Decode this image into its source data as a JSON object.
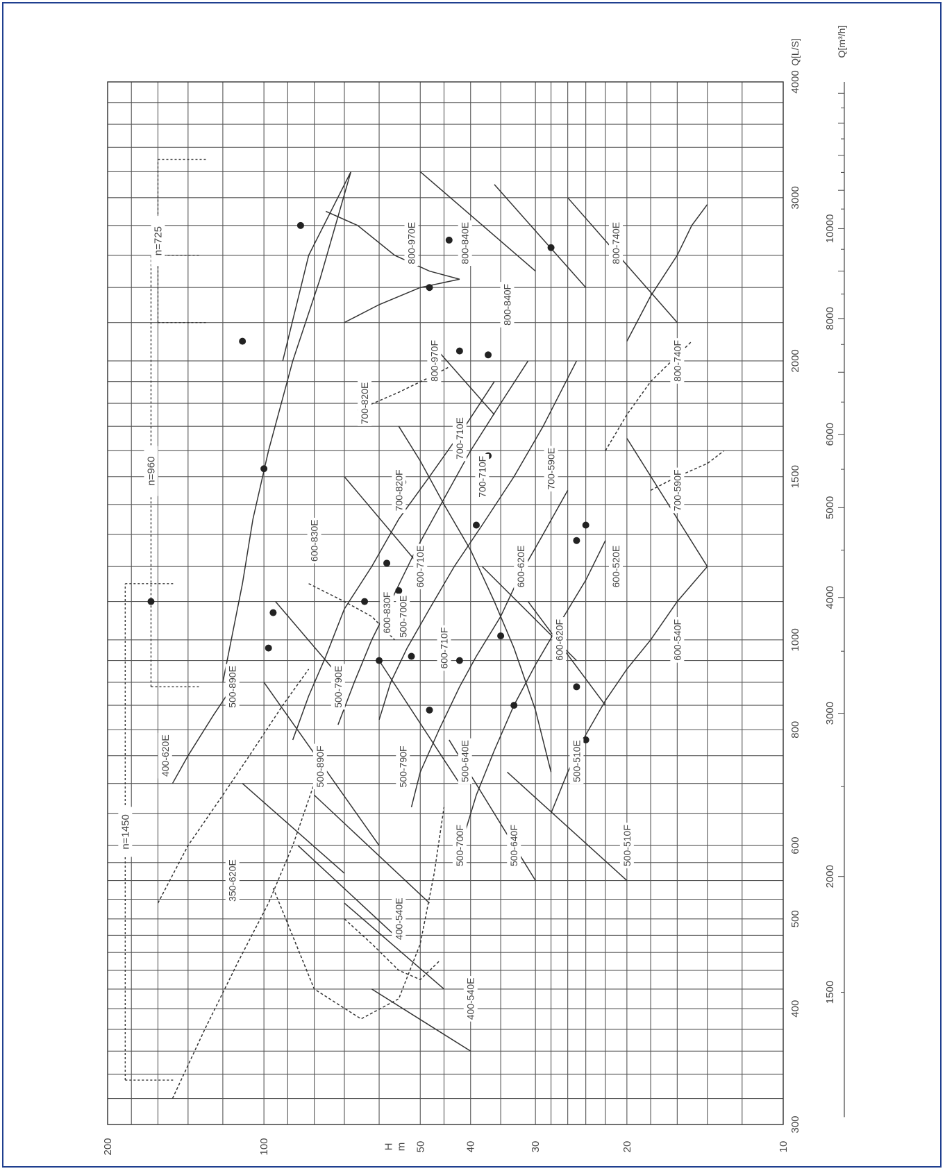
{
  "chart_data": {
    "type": "selection-chart",
    "orientation": "rotated 90 degrees clockwise (text reads bottom-to-top)",
    "x_axis": {
      "label": "H\nm",
      "scale": "log",
      "range": [
        10,
        200
      ],
      "ticks": [
        "200",
        "100",
        "50",
        "40",
        "30",
        "20",
        "10"
      ]
    },
    "flow_axis_ls": {
      "label": "Q[L/S]",
      "scale": "log",
      "range": [
        300,
        4000
      ],
      "ticks": [
        "300",
        "400",
        "500",
        "600",
        "800",
        "1000",
        "1500",
        "2000",
        "3000",
        "4000"
      ]
    },
    "flow_axis_m3h": {
      "label": "Q[m³/h]",
      "scale": "log",
      "ticks": [
        "1500",
        "2000",
        "3000",
        "4000",
        "5000",
        "6000",
        "8000",
        "10000"
      ]
    },
    "grid": true,
    "speed_bands": [
      {
        "label": "n=1450",
        "q_range_ls": [
          335,
          1150
        ],
        "h": 185
      },
      {
        "label": "n=960",
        "q_range_ls": [
          890,
          2600
        ],
        "h": 165
      },
      {
        "label": "n=725",
        "q_range_ls": [
          2200,
          3300
        ],
        "h": 160
      }
    ],
    "pump_models": [
      {
        "label": "350-620E",
        "h": 115,
        "q_ls": 550
      },
      {
        "label": "400-620E",
        "h": 155,
        "q_ls": 750
      },
      {
        "label": "400-540E",
        "h": 55,
        "q_ls": 500
      },
      {
        "label": "400-540E",
        "h": 40,
        "q_ls": 410
      },
      {
        "label": "500-890E",
        "h": 115,
        "q_ls": 890
      },
      {
        "label": "500-890F",
        "h": 78,
        "q_ls": 730
      },
      {
        "label": "500-790E",
        "h": 72,
        "q_ls": 890
      },
      {
        "label": "500-790F",
        "h": 54,
        "q_ls": 730
      },
      {
        "label": "500-700E",
        "h": 54,
        "q_ls": 1060
      },
      {
        "label": "500-700F",
        "h": 42,
        "q_ls": 600
      },
      {
        "label": "500-640E",
        "h": 41,
        "q_ls": 740
      },
      {
        "label": "500-640F",
        "h": 33,
        "q_ls": 600
      },
      {
        "label": "500-510E",
        "h": 25,
        "q_ls": 740
      },
      {
        "label": "500-510F",
        "h": 20,
        "q_ls": 600
      },
      {
        "label": "600-830E",
        "h": 80,
        "q_ls": 1280
      },
      {
        "label": "600-830F",
        "h": 58,
        "q_ls": 1070
      },
      {
        "label": "600-710E",
        "h": 50,
        "q_ls": 1200
      },
      {
        "label": "600-710F",
        "h": 45,
        "q_ls": 980
      },
      {
        "label": "600-620E",
        "h": 32,
        "q_ls": 1200
      },
      {
        "label": "600-620F",
        "h": 27,
        "q_ls": 1000
      },
      {
        "label": "600-520E",
        "h": 21,
        "q_ls": 1200
      },
      {
        "label": "600-540F",
        "h": 16,
        "q_ls": 1000
      },
      {
        "label": "700-820E",
        "h": 64,
        "q_ls": 1800
      },
      {
        "label": "700-820F",
        "h": 55,
        "q_ls": 1450
      },
      {
        "label": "700-710E",
        "h": 42,
        "q_ls": 1650
      },
      {
        "label": "700-710F",
        "h": 38,
        "q_ls": 1500
      },
      {
        "label": "700-590E",
        "h": 28,
        "q_ls": 1530
      },
      {
        "label": "700-590F",
        "h": 16,
        "q_ls": 1450
      },
      {
        "label": "800-970E",
        "h": 52,
        "q_ls": 2680
      },
      {
        "label": "800-970F",
        "h": 47,
        "q_ls": 2000
      },
      {
        "label": "800-840E",
        "h": 41,
        "q_ls": 2680
      },
      {
        "label": "800-840F",
        "h": 34,
        "q_ls": 2300
      },
      {
        "label": "800-740E",
        "h": 21,
        "q_ls": 2680
      },
      {
        "label": "800-740F",
        "h": 16,
        "q_ls": 2000
      }
    ],
    "bep_points": [
      {
        "h": 85,
        "q_ls": 2800
      },
      {
        "h": 48,
        "q_ls": 2400
      },
      {
        "h": 44,
        "q_ls": 2700
      },
      {
        "h": 110,
        "q_ls": 2100
      },
      {
        "h": 42,
        "q_ls": 2050
      },
      {
        "h": 37,
        "q_ls": 2030
      },
      {
        "h": 28,
        "q_ls": 2650
      },
      {
        "h": 100,
        "q_ls": 1530
      },
      {
        "h": 54,
        "q_ls": 1480
      },
      {
        "h": 37,
        "q_ls": 1580
      },
      {
        "h": 39,
        "q_ls": 1330
      },
      {
        "h": 24,
        "q_ls": 1330
      },
      {
        "h": 25,
        "q_ls": 1280
      },
      {
        "h": 165,
        "q_ls": 1100
      },
      {
        "h": 96,
        "q_ls": 1070
      },
      {
        "h": 64,
        "q_ls": 1100
      },
      {
        "h": 58,
        "q_ls": 1210
      },
      {
        "h": 55,
        "q_ls": 1130
      },
      {
        "h": 35,
        "q_ls": 1010
      },
      {
        "h": 98,
        "q_ls": 980
      },
      {
        "h": 60,
        "q_ls": 950
      },
      {
        "h": 52,
        "q_ls": 960
      },
      {
        "h": 42,
        "q_ls": 950
      },
      {
        "h": 48,
        "q_ls": 840
      },
      {
        "h": 33,
        "q_ls": 850
      },
      {
        "h": 25,
        "q_ls": 890
      },
      {
        "h": 24,
        "q_ls": 780
      }
    ]
  }
}
